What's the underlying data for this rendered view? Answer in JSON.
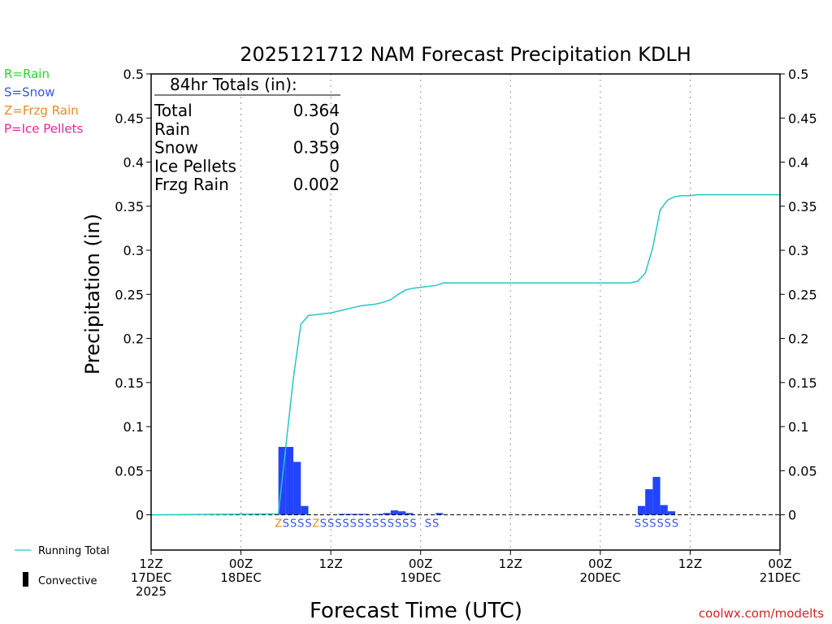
{
  "chart_data": {
    "type": "bar",
    "title": "2025121712 NAM Forecast Precipitation KDLH",
    "xlabel": "Forecast Time (UTC)",
    "ylabel": "Precipitation (in)",
    "ylim": [
      -0.04,
      0.5
    ],
    "xlim_hours": [
      0,
      84
    ],
    "yticks": [
      0,
      0.05,
      0.1,
      0.15,
      0.2,
      0.25,
      0.3,
      0.35,
      0.4,
      0.45,
      0.5
    ],
    "ytick_labels": [
      "0",
      "0.05",
      "0.1",
      "0.15",
      "0.2",
      "0.25",
      "0.3",
      "0.35",
      "0.4",
      "0.45",
      "0.5"
    ],
    "xticks": [
      {
        "hour": 0,
        "lines": [
          "12Z",
          "17DEC",
          "2025"
        ]
      },
      {
        "hour": 12,
        "lines": [
          "00Z",
          "18DEC"
        ]
      },
      {
        "hour": 24,
        "lines": [
          "12Z"
        ]
      },
      {
        "hour": 36,
        "lines": [
          "00Z",
          "19DEC"
        ]
      },
      {
        "hour": 48,
        "lines": [
          "12Z"
        ]
      },
      {
        "hour": 60,
        "lines": [
          "00Z",
          "20DEC"
        ]
      },
      {
        "hour": 72,
        "lines": [
          "12Z"
        ]
      },
      {
        "hour": 84,
        "lines": [
          "00Z",
          "21DEC"
        ]
      }
    ],
    "legend": [
      {
        "text": "R=Rain",
        "color": "#22dd22"
      },
      {
        "text": "S=Snow",
        "color": "#3355ee"
      },
      {
        "text": "Z=Frzg Rain",
        "color": "#ee8822"
      },
      {
        "text": "P=Ice Pellets",
        "color": "#ee2299"
      }
    ],
    "bottom_legend": {
      "running_total": "Running Total",
      "convective": "Convective"
    },
    "totals_box": {
      "header": "84hr Totals (in):",
      "rows": [
        {
          "label": "Total",
          "value": "0.364"
        },
        {
          "label": "Rain",
          "value": "0"
        },
        {
          "label": "Snow",
          "value": "0.359"
        },
        {
          "label": "Ice Pellets",
          "value": "0"
        },
        {
          "label": "Frzg Rain",
          "value": "0.002"
        }
      ]
    },
    "bars": [
      {
        "start": 17,
        "end": 18,
        "value": 0.077
      },
      {
        "start": 18,
        "end": 19,
        "value": 0.077
      },
      {
        "start": 19,
        "end": 20,
        "value": 0.06
      },
      {
        "start": 20,
        "end": 21,
        "value": 0.01
      },
      {
        "start": 25,
        "end": 26,
        "value": 0.001
      },
      {
        "start": 26,
        "end": 27,
        "value": 0.001
      },
      {
        "start": 27,
        "end": 28,
        "value": 0.001
      },
      {
        "start": 28,
        "end": 29,
        "value": 0.001
      },
      {
        "start": 30,
        "end": 31,
        "value": 0.001
      },
      {
        "start": 31,
        "end": 32,
        "value": 0.002
      },
      {
        "start": 32,
        "end": 33,
        "value": 0.005
      },
      {
        "start": 33,
        "end": 34,
        "value": 0.004
      },
      {
        "start": 34,
        "end": 35,
        "value": 0.002
      },
      {
        "start": 38,
        "end": 39,
        "value": 0.002
      },
      {
        "start": 65,
        "end": 66,
        "value": 0.01
      },
      {
        "start": 66,
        "end": 67,
        "value": 0.029
      },
      {
        "start": 67,
        "end": 68,
        "value": 0.043
      },
      {
        "start": 68,
        "end": 69,
        "value": 0.011
      },
      {
        "start": 69,
        "end": 70,
        "value": 0.004
      }
    ],
    "running_total": [
      [
        0,
        0
      ],
      [
        17,
        0.001
      ],
      [
        18,
        0.078
      ],
      [
        19,
        0.155
      ],
      [
        20,
        0.216
      ],
      [
        21,
        0.226
      ],
      [
        22,
        0.227
      ],
      [
        23,
        0.228
      ],
      [
        24,
        0.229
      ],
      [
        25,
        0.231
      ],
      [
        26,
        0.233
      ],
      [
        27,
        0.235
      ],
      [
        28,
        0.237
      ],
      [
        29,
        0.238
      ],
      [
        30,
        0.239
      ],
      [
        31,
        0.241
      ],
      [
        32,
        0.244
      ],
      [
        33,
        0.25
      ],
      [
        34,
        0.255
      ],
      [
        35,
        0.257
      ],
      [
        36,
        0.258
      ],
      [
        37,
        0.259
      ],
      [
        38,
        0.26
      ],
      [
        39,
        0.263
      ],
      [
        64,
        0.263
      ],
      [
        65,
        0.265
      ],
      [
        66,
        0.274
      ],
      [
        67,
        0.303
      ],
      [
        68,
        0.346
      ],
      [
        69,
        0.357
      ],
      [
        70,
        0.361
      ],
      [
        71,
        0.362
      ],
      [
        72,
        0.362
      ],
      [
        73,
        0.363
      ],
      [
        84,
        0.363
      ]
    ],
    "ptype_labels": [
      {
        "hour": 17,
        "code": "Z"
      },
      {
        "hour": 18,
        "code": "S"
      },
      {
        "hour": 19,
        "code": "S"
      },
      {
        "hour": 20,
        "code": "S"
      },
      {
        "hour": 21,
        "code": "S"
      },
      {
        "hour": 22,
        "code": "Z"
      },
      {
        "hour": 23,
        "code": "S"
      },
      {
        "hour": 24,
        "code": "S"
      },
      {
        "hour": 25,
        "code": "S"
      },
      {
        "hour": 26,
        "code": "S"
      },
      {
        "hour": 27,
        "code": "S"
      },
      {
        "hour": 28,
        "code": "S"
      },
      {
        "hour": 29,
        "code": "S"
      },
      {
        "hour": 30,
        "code": "S"
      },
      {
        "hour": 31,
        "code": "S"
      },
      {
        "hour": 32,
        "code": "S"
      },
      {
        "hour": 33,
        "code": "S"
      },
      {
        "hour": 34,
        "code": "S"
      },
      {
        "hour": 35,
        "code": "S"
      },
      {
        "hour": 37,
        "code": "S"
      },
      {
        "hour": 38,
        "code": "S"
      },
      {
        "hour": 65,
        "code": "S"
      },
      {
        "hour": 66,
        "code": "S"
      },
      {
        "hour": 67,
        "code": "S"
      },
      {
        "hour": 68,
        "code": "S"
      },
      {
        "hour": 69,
        "code": "S"
      },
      {
        "hour": 70,
        "code": "S"
      }
    ],
    "colors": {
      "bar": "#2244ff",
      "line": "#22c8c8",
      "snow": "#3355ee",
      "frzg": "#ee8822",
      "grid": "#999999",
      "axis": "#000000"
    },
    "credit": "coolwx.com/modelts",
    "credit_color": "#dd2222"
  }
}
